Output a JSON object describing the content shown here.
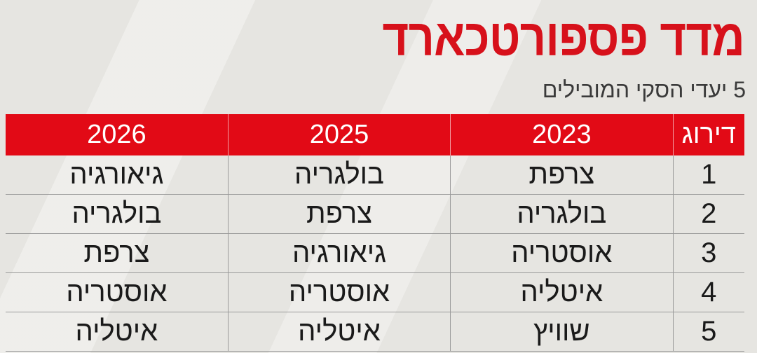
{
  "header": {
    "title": "מדד פספורטכארד",
    "subtitle": "5 יעדי הסקי המובילים"
  },
  "table": {
    "columns": [
      "דירוג",
      "2023",
      "2025",
      "2026"
    ],
    "rows": [
      [
        "1",
        "צרפת",
        "בולגריה",
        "גיאורגיה"
      ],
      [
        "2",
        "בולגריה",
        "צרפת",
        "בולגריה"
      ],
      [
        "3",
        "אוסטריה",
        "גיאורגיה",
        "צרפת"
      ],
      [
        "4",
        "איטליה",
        "אוסטריה",
        "אוסטריה"
      ],
      [
        "5",
        "שוויץ",
        "איטליה",
        "איטליה"
      ]
    ]
  }
}
